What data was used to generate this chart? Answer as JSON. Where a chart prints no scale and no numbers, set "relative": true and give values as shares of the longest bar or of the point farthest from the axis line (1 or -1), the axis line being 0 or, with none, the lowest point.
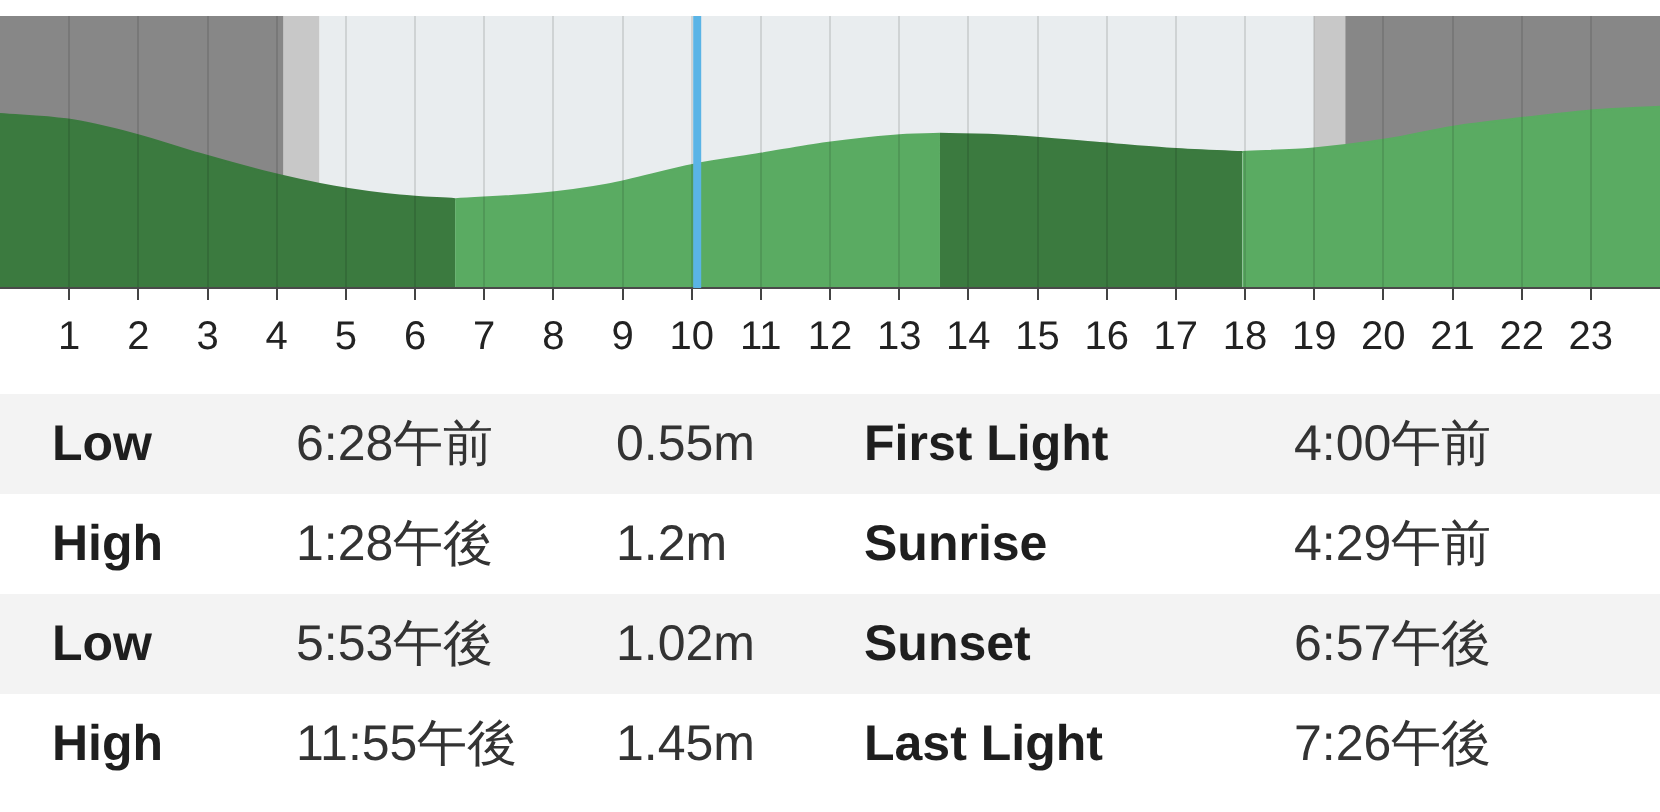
{
  "chart_data": [
    {
      "type": "area",
      "relative": true,
      "xlim": [
        0,
        24
      ],
      "xticks": [
        1,
        2,
        3,
        4,
        5,
        6,
        7,
        8,
        9,
        10,
        11,
        12,
        13,
        14,
        15,
        16,
        17,
        18,
        19,
        20,
        21,
        22,
        23
      ],
      "grid": "x",
      "series": [
        {
          "color": "#3b7a3f",
          "x": [
            0,
            0.96,
            1.93,
            2.89,
            3.85,
            4.82,
            5.78,
            6.58
          ],
          "values": [
            0.96,
            0.93,
            0.85,
            0.74,
            0.64,
            0.56,
            0.51,
            0.49
          ]
        },
        {
          "color": "#5aab62",
          "x": [
            6.58,
            7.81,
            8.77,
            10.03,
            10.99,
            11.95,
            12.92,
            13.59
          ],
          "values": [
            0.49,
            0.52,
            0.57,
            0.68,
            0.74,
            0.8,
            0.84,
            0.85
          ]
        },
        {
          "color": "#3b7a3f",
          "x": [
            13.59,
            14.56,
            15.9,
            16.87,
            17.96
          ],
          "values": [
            0.85,
            0.84,
            0.8,
            0.77,
            0.75
          ]
        },
        {
          "color": "#5aab62",
          "x": [
            17.96,
            18.99,
            20.05,
            21.01,
            22.07,
            23.04,
            24
          ],
          "values": [
            0.75,
            0.77,
            0.82,
            0.89,
            0.94,
            0.98,
            1
          ]
        }
      ],
      "bands": [
        {
          "axis": "x",
          "from": 0,
          "to": 4.1,
          "color": "#878787"
        },
        {
          "axis": "x",
          "from": 4.1,
          "to": 4.62,
          "color": "#c8c8c8"
        },
        {
          "axis": "x",
          "from": 4.62,
          "to": 19.0,
          "color": "#e9edef"
        },
        {
          "axis": "x",
          "from": 19.0,
          "to": 19.45,
          "color": "#c8c8c8"
        },
        {
          "axis": "x",
          "from": 19.45,
          "to": 24,
          "color": "#878787"
        }
      ],
      "ref_lines": [
        {
          "axis": "x",
          "value": 10.08,
          "color": "#5ab4e6"
        }
      ]
    },
    {
      "type": "other",
      "annotations": [
        "Low",
        "6:28午前",
        "0.55m",
        "First Light",
        "4:00午前",
        "High",
        "1:28午後",
        "1.2m",
        "Sunrise",
        "4:29午前",
        "Low",
        "5:53午後",
        "1.02m",
        "Sunset",
        "6:57午後",
        "High",
        "11:55午後",
        "1.45m",
        "Last Light",
        "7:26午後"
      ]
    }
  ]
}
